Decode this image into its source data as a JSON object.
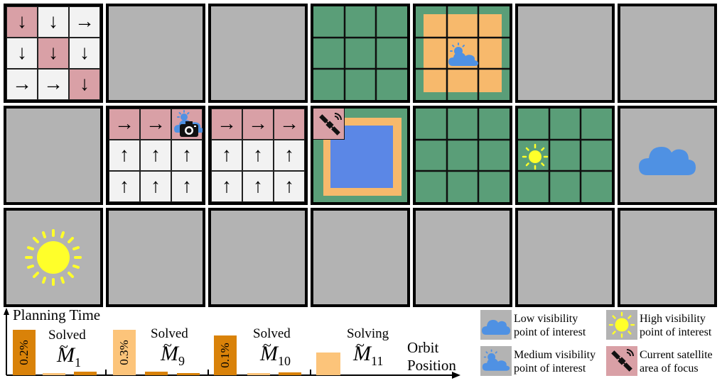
{
  "colors": {
    "cell_gray": "#b3b3b3",
    "field_green": "#5a9e78",
    "focus_pink": "#d9a0a6",
    "visited_white": "#f2f2f2",
    "halo_orange": "#f7b96c",
    "target_blue": "#5b87e6",
    "cloud_blue": "#4f91e3",
    "sun_yellow": "#ffff2a",
    "bar_dark": "#d98209",
    "bar_light": "#fcc47a"
  },
  "grid": {
    "rows": 3,
    "cols": 7,
    "cell_types": [
      [
        "arrows",
        "gray",
        "gray",
        "green",
        "green-halo-cloud",
        "gray",
        "gray"
      ],
      [
        "gray",
        "arrows",
        "arrows",
        "green-target",
        "green",
        "green-sun",
        "gray-cloud"
      ],
      [
        "gray-sun",
        "gray",
        "gray",
        "gray",
        "gray",
        "gray",
        "gray"
      ]
    ],
    "arrow_grids": {
      "cell_r0_c0": {
        "arrows": [
          [
            "↓",
            "↓",
            "→"
          ],
          [
            "↓",
            "↓",
            "↓"
          ],
          [
            "→",
            "→",
            "↓"
          ]
        ],
        "focus": [
          [
            true,
            false,
            false
          ],
          [
            false,
            true,
            false
          ],
          [
            false,
            false,
            true
          ]
        ]
      },
      "cell_r1_c1": {
        "arrows": [
          [
            "→",
            "→",
            ""
          ],
          [
            "↑",
            "↑",
            "↑"
          ],
          [
            "↑",
            "↑",
            "↑"
          ]
        ],
        "focus": [
          [
            true,
            true,
            true
          ],
          [
            false,
            false,
            false
          ],
          [
            false,
            false,
            false
          ]
        ],
        "camera_icon": "camera-icon"
      },
      "cell_r1_c2": {
        "arrows": [
          [
            "→",
            "→",
            "→"
          ],
          [
            "↑",
            "↑",
            "↑"
          ],
          [
            "↑",
            "↑",
            "↑"
          ]
        ],
        "focus": [
          [
            true,
            true,
            true
          ],
          [
            false,
            false,
            false
          ],
          [
            false,
            false,
            false
          ]
        ]
      }
    }
  },
  "timeline": {
    "y_label": "Planning Time",
    "x_label_line1": "Orbit",
    "x_label_line2": "Position",
    "groups": [
      {
        "status": "Solved",
        "model": "M",
        "subscript": "1",
        "percent": "0.2%",
        "tall_bar": "dark",
        "tall_value": 1.0,
        "small_bars": [
          0.05,
          0.08
        ]
      },
      {
        "status": "Solved",
        "model": "M",
        "subscript": "9",
        "percent": "0.3%",
        "tall_bar": "light",
        "tall_value": 1.0,
        "small_bars": [
          0.08,
          0.05
        ]
      },
      {
        "status": "Solved",
        "model": "M",
        "subscript": "10",
        "percent": "0.1%",
        "tall_bar": "dark",
        "tall_value": 0.88,
        "small_bars": [
          0.05,
          0.06
        ]
      },
      {
        "status": "Solving",
        "model": "M",
        "subscript": "11",
        "percent": "",
        "tall_bar": "light",
        "tall_value": 0.5,
        "small_bars": []
      }
    ]
  },
  "legend": [
    {
      "icon": "cloud-icon",
      "line1": "Low visibility",
      "line2": "point of interest"
    },
    {
      "icon": "sun-icon",
      "line1": "High visibility",
      "line2": "point of interest"
    },
    {
      "icon": "partly-cloudy-icon",
      "line1": "Medium visibility",
      "line2": "point of interest"
    },
    {
      "icon": "satellite-icon",
      "line1": "Current satellite",
      "line2": "area of focus"
    }
  ]
}
